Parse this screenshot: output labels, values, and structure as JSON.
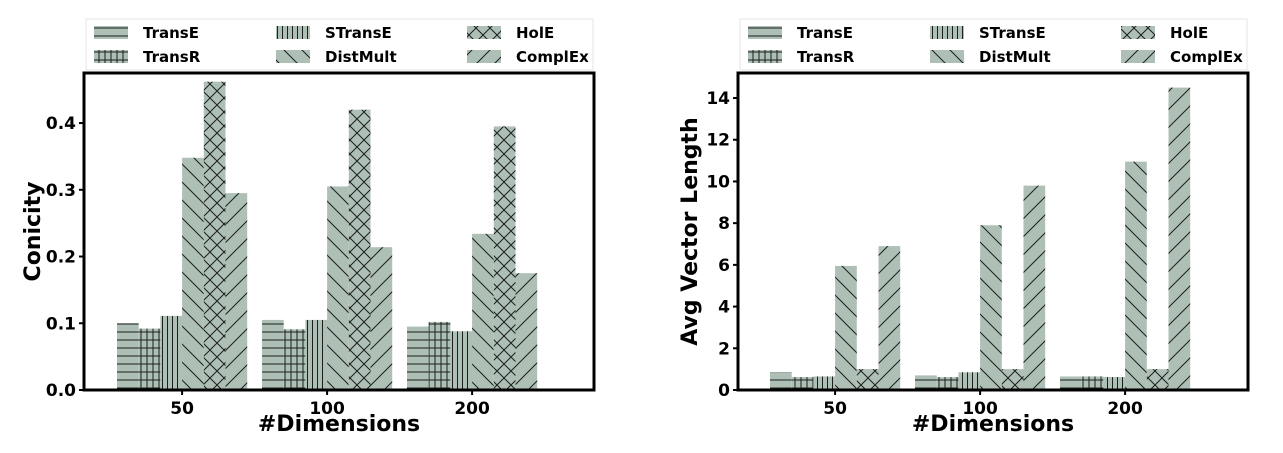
{
  "bar_color": "#aebfb6",
  "chart_data": [
    {
      "type": "bar",
      "title": "",
      "xlabel": "#Dimensions",
      "ylabel": "Conicity",
      "categories": [
        "50",
        "100",
        "200"
      ],
      "ylim": [
        0,
        0.475
      ],
      "yticks": [
        "0.0",
        "0.1",
        "0.2",
        "0.3",
        "0.4"
      ],
      "ytick_values": [
        0,
        0.1,
        0.2,
        0.3,
        0.4
      ],
      "legend": "top",
      "series": [
        {
          "name": "TransE",
          "pattern": "hline",
          "values": [
            0.1,
            0.105,
            0.095
          ]
        },
        {
          "name": "TransR",
          "pattern": "grid",
          "values": [
            0.092,
            0.091,
            0.102
          ]
        },
        {
          "name": "STransE",
          "pattern": "vline",
          "values": [
            0.111,
            0.105,
            0.088
          ]
        },
        {
          "name": "DistMult",
          "pattern": "backslash",
          "values": [
            0.348,
            0.305,
            0.234
          ]
        },
        {
          "name": "HolE",
          "pattern": "cross",
          "values": [
            0.462,
            0.42,
            0.395
          ]
        },
        {
          "name": "ComplEx",
          "pattern": "slash",
          "values": [
            0.295,
            0.214,
            0.175
          ]
        }
      ]
    },
    {
      "type": "bar",
      "title": "",
      "xlabel": "#Dimensions",
      "ylabel": "Avg Vector Length",
      "categories": [
        "50",
        "100",
        "200"
      ],
      "ylim": [
        0,
        15.2
      ],
      "yticks": [
        "0",
        "2",
        "4",
        "6",
        "8",
        "10",
        "12",
        "14"
      ],
      "ytick_values": [
        0,
        2,
        4,
        6,
        8,
        10,
        12,
        14
      ],
      "legend": "top",
      "series": [
        {
          "name": "TransE",
          "pattern": "hline",
          "values": [
            0.85,
            0.7,
            0.65
          ]
        },
        {
          "name": "TransR",
          "pattern": "grid",
          "values": [
            0.62,
            0.62,
            0.65
          ]
        },
        {
          "name": "STransE",
          "pattern": "vline",
          "values": [
            0.65,
            0.85,
            0.62
          ]
        },
        {
          "name": "DistMult",
          "pattern": "backslash",
          "values": [
            5.95,
            7.9,
            10.95
          ]
        },
        {
          "name": "HolE",
          "pattern": "cross",
          "values": [
            1.0,
            1.0,
            1.0
          ]
        },
        {
          "name": "ComplEx",
          "pattern": "slash",
          "values": [
            6.9,
            9.8,
            14.5
          ]
        }
      ]
    }
  ]
}
